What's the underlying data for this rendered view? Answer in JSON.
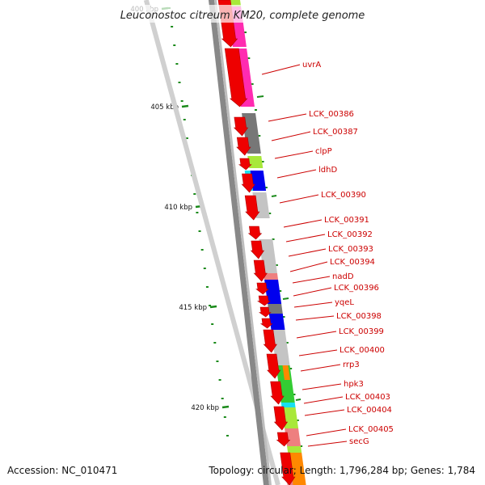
{
  "title": "Leuconostoc citreum KM20, complete genome",
  "accession": "Accession: NC_010471",
  "summary": "Topology: circular; Length: 1,796,284 bp; Genes: 1,784",
  "ticks": [
    {
      "kbp": 400,
      "label": "400 kbp"
    },
    {
      "kbp": 405,
      "label": "405 kbp"
    },
    {
      "kbp": 410,
      "label": "410 kbp"
    },
    {
      "kbp": 415,
      "label": "415 kbp"
    },
    {
      "kbp": 420,
      "label": "420 kbp"
    }
  ],
  "colors": {
    "cds": "#ee0000",
    "label": "#cc0000",
    "backbone": "#888888",
    "gc_skew": "#1a8a1a",
    "cog_pink": "#ff2bb0",
    "cog_gray": "#777777",
    "cog_lightgray": "#c4c4c4",
    "cog_lime": "#a8e83a",
    "cog_blue": "#0000ee",
    "cog_cyan": "#18e0f0",
    "cog_green": "#33cc33",
    "cog_orange": "#ff8800",
    "cog_salmon": "#ee7f7f"
  },
  "genes": [
    {
      "label": "uvrA"
    },
    {
      "label": "LCK_00386"
    },
    {
      "label": "LCK_00387"
    },
    {
      "label": "clpP"
    },
    {
      "label": "ldhD"
    },
    {
      "label": "LCK_00390"
    },
    {
      "label": "LCK_00391"
    },
    {
      "label": "LCK_00392"
    },
    {
      "label": "LCK_00393"
    },
    {
      "label": "LCK_00394"
    },
    {
      "label": "nadD"
    },
    {
      "label": "LCK_00396"
    },
    {
      "label": "yqeL"
    },
    {
      "label": "LCK_00398"
    },
    {
      "label": "LCK_00399"
    },
    {
      "label": "LCK_00400"
    },
    {
      "label": "rrp3"
    },
    {
      "label": "hpk3"
    },
    {
      "label": "LCK_00403"
    },
    {
      "label": "LCK_00404"
    },
    {
      "label": "LCK_00405"
    },
    {
      "label": "secG"
    }
  ]
}
